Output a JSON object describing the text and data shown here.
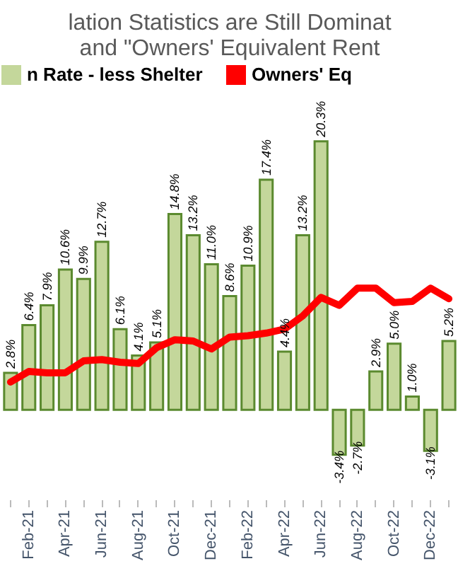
{
  "chart_data": {
    "type": "bar",
    "title": [
      "lation Statistics are Still Dominat",
      "and \"Owners' Equivalent Rent"
    ],
    "categories": [
      null,
      "Feb-21",
      null,
      "Apr-21",
      null,
      "Jun-21",
      null,
      "Aug-21",
      null,
      "Oct-21",
      null,
      "Dec-21",
      null,
      "Feb-22",
      null,
      "Apr-22",
      null,
      "Jun-22",
      null,
      "Aug-22",
      null,
      "Oct-22",
      null,
      "Dec-22",
      null
    ],
    "series": [
      {
        "name": "n Rate - less Shelter",
        "color": "#c4d79b",
        "values": [
          2.8,
          6.4,
          7.9,
          10.6,
          9.9,
          12.7,
          6.1,
          4.1,
          5.1,
          14.8,
          13.2,
          11.0,
          8.6,
          10.9,
          17.4,
          4.4,
          13.2,
          20.3,
          -3.4,
          -2.7,
          2.9,
          5.0,
          1.0,
          -3.1,
          5.2
        ],
        "value_labels": [
          "2.8%",
          "6.4%",
          "7.9%",
          "10.6%",
          "9.9%",
          "12.7%",
          "6.1%",
          "4.1%",
          "5.1%",
          "14.8%",
          "13.2%",
          "11.0%",
          "8.6%",
          "10.9%",
          "17.4%",
          "4.4%",
          "13.2%",
          "20.3%",
          "-3.4%",
          "-2.7%",
          "2.9%",
          "5.0%",
          "1.0%",
          "-3.1%",
          "5.2%"
        ]
      },
      {
        "name": "Owners' Eq",
        "type": "line",
        "color": "#ff0000",
        "values": [
          2.1,
          2.9,
          2.8,
          2.8,
          3.7,
          3.8,
          3.6,
          3.5,
          4.7,
          5.3,
          5.2,
          4.6,
          5.5,
          5.6,
          5.8,
          6.1,
          7.1,
          8.5,
          7.9,
          9.2,
          9.2,
          8.1,
          8.2,
          9.2,
          8.4
        ]
      }
    ],
    "legend": "top"
  }
}
